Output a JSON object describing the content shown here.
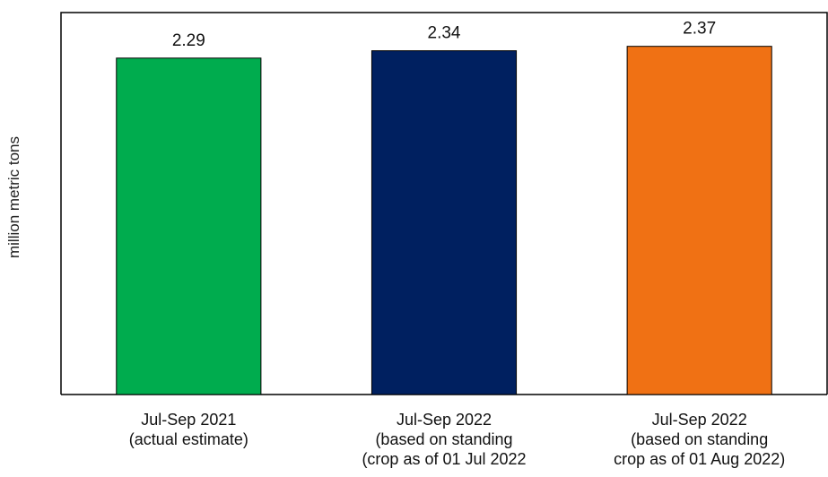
{
  "chart_data": {
    "type": "bar",
    "title": "",
    "xlabel": "",
    "ylabel": "million metric tons",
    "ylim": [
      0,
      2.6
    ],
    "grid": false,
    "legend": "none",
    "categories": [
      [
        "Jul-Sep 2021",
        "(actual estimate)"
      ],
      [
        "Jul-Sep 2022",
        "(based on standing",
        "(crop as of 01 Jul 2022"
      ],
      [
        "Jul-Sep 2022",
        "(based on standing",
        "crop as of 01 Aug 2022)"
      ]
    ],
    "values": [
      2.29,
      2.34,
      2.37
    ],
    "value_labels": [
      "2.29",
      "2.34",
      "2.37"
    ],
    "colors": [
      "#00AC4E",
      "#002060",
      "#F07114"
    ]
  }
}
